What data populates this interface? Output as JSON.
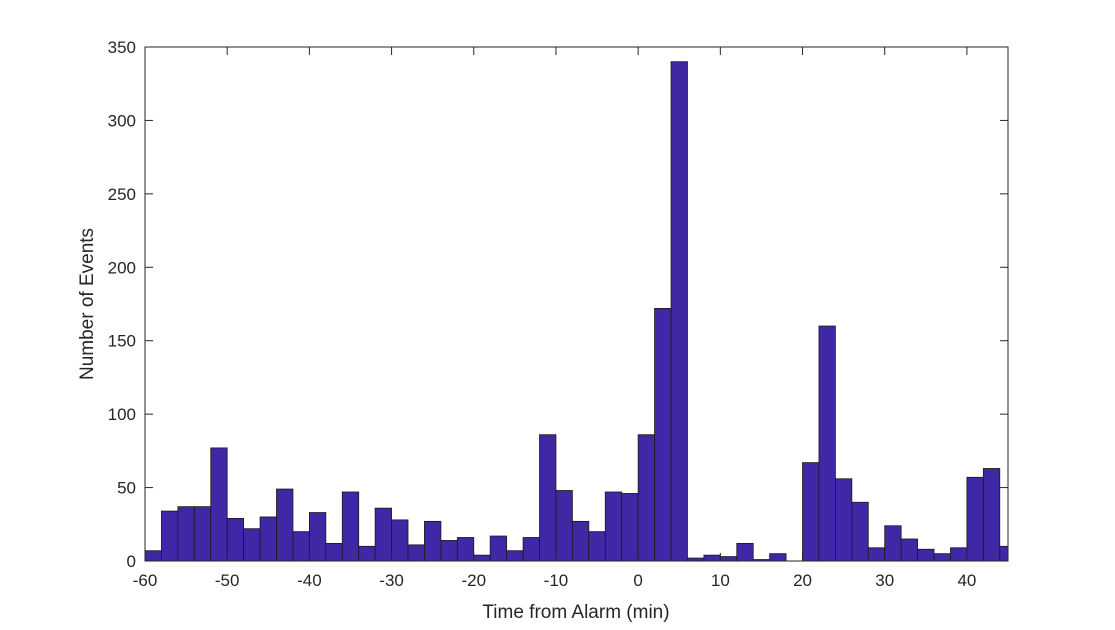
{
  "chart_data": {
    "type": "bar",
    "title": "",
    "xlabel": "Time from Alarm (min)",
    "ylabel": "Number of Events",
    "xlim": [
      -60,
      45
    ],
    "ylim": [
      0,
      350
    ],
    "xticks": [
      -60,
      -50,
      -40,
      -30,
      -20,
      -10,
      0,
      10,
      20,
      30,
      40
    ],
    "yticks": [
      0,
      50,
      100,
      150,
      200,
      250,
      300,
      350
    ],
    "bin_width": 2,
    "bin_start": -60,
    "values": [
      7,
      34,
      37,
      37,
      77,
      29,
      22,
      30,
      49,
      20,
      33,
      12,
      47,
      10,
      36,
      28,
      11,
      27,
      14,
      16,
      4,
      17,
      7,
      16,
      86,
      48,
      27,
      20,
      47,
      46,
      86,
      172,
      340,
      2,
      4,
      3,
      12,
      1,
      5,
      0,
      67,
      160,
      56,
      40,
      9,
      24,
      15,
      8,
      5,
      9,
      57,
      63,
      10
    ],
    "bar_color": "#3f27a6",
    "edge_color": "#1a1a1a",
    "grid": false,
    "box": true
  }
}
